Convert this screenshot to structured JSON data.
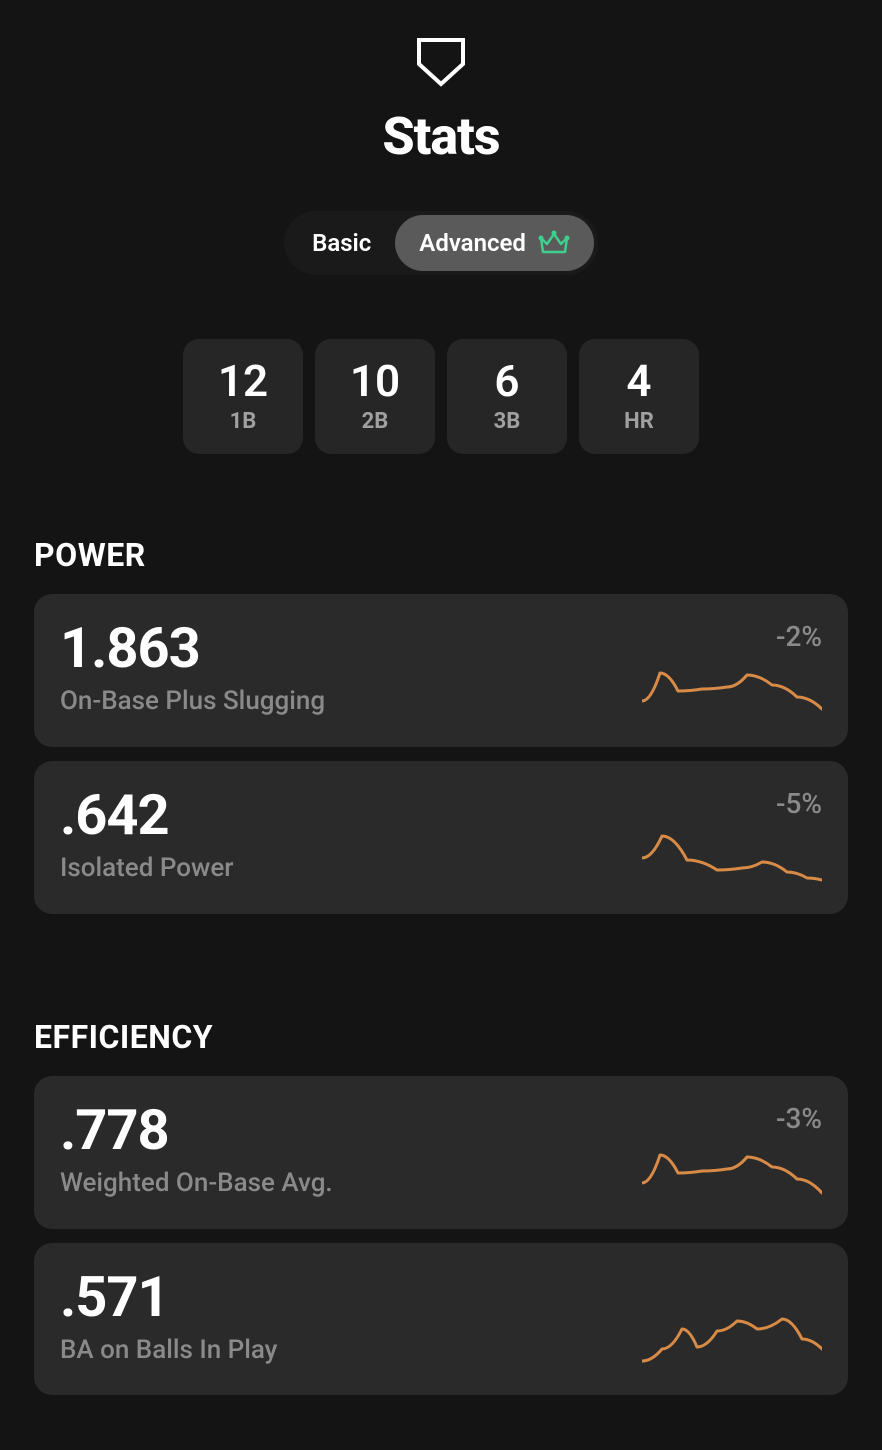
{
  "header": {
    "title": "Stats"
  },
  "tabs": {
    "basic": "Basic",
    "advanced": "Advanced",
    "active": "advanced"
  },
  "chips": [
    {
      "value": "12",
      "label": "1B"
    },
    {
      "value": "10",
      "label": "2B"
    },
    {
      "value": "6",
      "label": "3B"
    },
    {
      "value": "4",
      "label": "HR"
    }
  ],
  "sections": [
    {
      "title": "POWER",
      "stats": [
        {
          "value": "1.863",
          "label": "On-Base Plus Slugging",
          "delta": "-2%",
          "spark": {
            "points": [
              0,
              40,
              18,
              12,
              36,
              30,
              60,
              28,
              85,
              26,
              105,
              14,
              130,
              24,
              155,
              36,
              180,
              48
            ],
            "color": "#d88b47",
            "stroke_width": 3
          }
        },
        {
          "value": ".642",
          "label": "Isolated Power",
          "delta": "-5%",
          "spark": {
            "points": [
              0,
              30,
              20,
              8,
              45,
              32,
              75,
              42,
              100,
              40,
              120,
              34,
              145,
              44,
              165,
              50,
              180,
              52
            ],
            "color": "#d88b47",
            "stroke_width": 3
          }
        }
      ]
    },
    {
      "title": "EFFICIENCY",
      "stats": [
        {
          "value": ".778",
          "label": "Weighted On-Base Avg.",
          "delta": "-3%",
          "spark": {
            "points": [
              0,
              40,
              18,
              12,
              36,
              30,
              60,
              28,
              85,
              26,
              105,
              14,
              130,
              24,
              155,
              36,
              180,
              50
            ],
            "color": "#d88b47",
            "stroke_width": 3
          }
        },
        {
          "value": ".571",
          "label": "BA on Balls In Play",
          "delta": "",
          "spark": {
            "points": [
              0,
              52,
              20,
              40,
              40,
              20,
              55,
              38,
              75,
              22,
              95,
              12,
              115,
              20,
              140,
              10,
              160,
              30,
              180,
              40
            ],
            "color": "#d88b47",
            "stroke_width": 3
          }
        }
      ]
    }
  ],
  "colors": {
    "bg": "#141414",
    "card": "#2a2a2a",
    "chip": "#262626",
    "tab_active": "#5a5a5a",
    "accent": "#3ecf8e",
    "spark": "#d88b47",
    "muted": "#8a8a8a"
  }
}
